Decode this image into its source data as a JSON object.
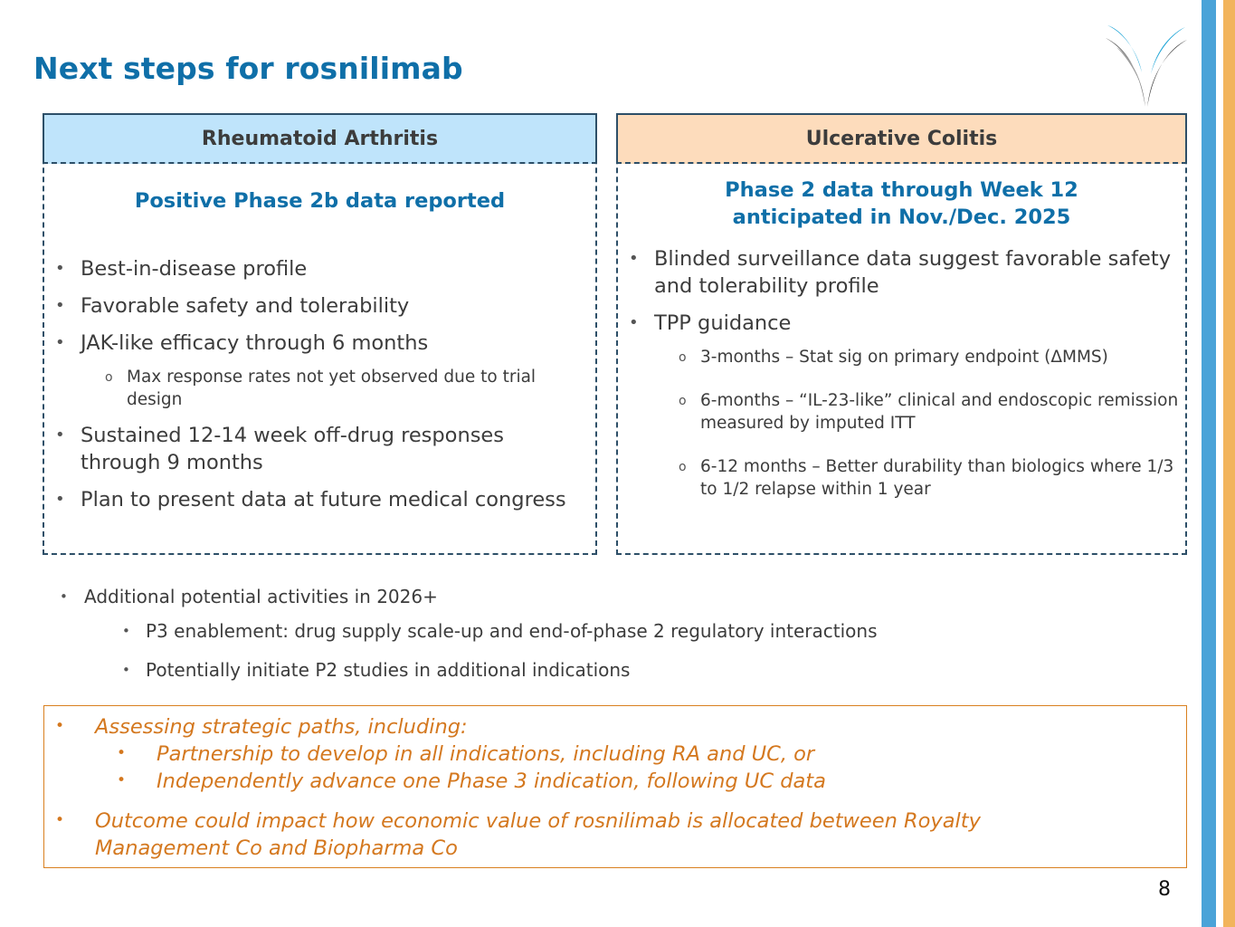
{
  "slide": {
    "title": "Next steps for rosnilimab",
    "page_number": "8"
  },
  "ra_panel": {
    "header": "Rheumatoid Arthritis",
    "subtitle": "Positive Phase 2b data reported",
    "bullets": [
      "Best-in-disease profile",
      "Favorable safety and tolerability",
      "JAK-like efficacy through 6 months",
      "Sustained 12-14 week off-drug responses through 9 months",
      "Plan to present data at future medical congress"
    ],
    "sub_bullet": "Max response rates not yet observed due to trial design"
  },
  "uc_panel": {
    "header": "Ulcerative Colitis",
    "subtitle_line1": "Phase 2 data through Week 12",
    "subtitle_line2": "anticipated in Nov./Dec. 2025",
    "bullets": [
      "Blinded surveillance data suggest favorable safety and tolerability profile",
      "TPP guidance"
    ],
    "sub_bullets": [
      "3-months – Stat sig on primary endpoint (ΔMMS)",
      "6-months – “IL-23-like” clinical and endoscopic remission measured by imputed ITT",
      "6-12 months – Better durability than biologics where 1/3 to 1/2 relapse within 1 year"
    ]
  },
  "additional": {
    "heading": "Additional potential activities in 2026+",
    "items": [
      "P3 enablement: drug supply scale-up and end-of-phase 2 regulatory interactions",
      "Potentially initiate P2 studies in additional indications"
    ]
  },
  "strategy_box": {
    "line1": "Assessing strategic paths, including:",
    "sub1": "Partnership to develop in all indications, including RA and UC, or",
    "sub2": "Independently advance one Phase 3 indication, following UC data",
    "line2": "Outcome could impact how economic value of rosnilimab is allocated between Royalty Management Co and Biopharma Co"
  },
  "bullet_glyphs": {
    "dot": "•",
    "circle": "o"
  },
  "colors": {
    "title": "#0f6fa8",
    "ra_header_bg": "#bfe4fb",
    "uc_header_bg": "#fddcbc",
    "strategy_text": "#d4781f",
    "accent_stripe_blue": "#4aa3d8",
    "accent_stripe_orange": "#f2b45c"
  }
}
